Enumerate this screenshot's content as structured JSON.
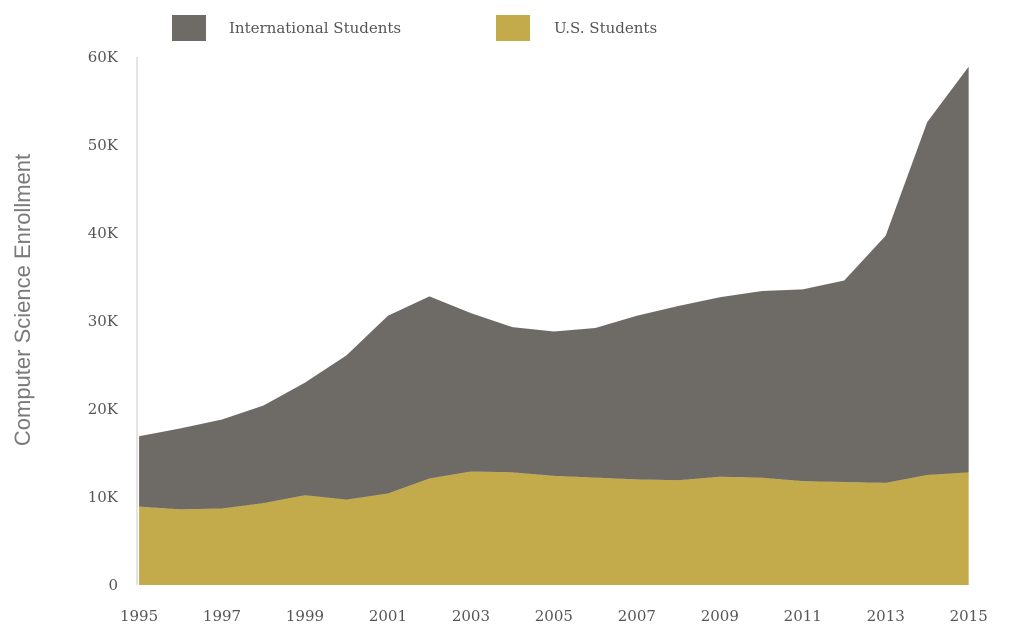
{
  "chart_data": {
    "type": "area",
    "stacked": true,
    "title": "",
    "xlabel": "",
    "ylabel": "Computer Science Enrollment",
    "x": [
      1995,
      1996,
      1997,
      1998,
      1999,
      2000,
      2001,
      2002,
      2003,
      2004,
      2005,
      2006,
      2007,
      2008,
      2009,
      2010,
      2011,
      2012,
      2013,
      2014,
      2015
    ],
    "xlim": [
      1994.95,
      2015.9
    ],
    "x_ticks": [
      1995,
      1997,
      1999,
      2001,
      2003,
      2005,
      2007,
      2009,
      2011,
      2013,
      2015
    ],
    "x_tick_labels": [
      "1995",
      "1997",
      "1999",
      "2001",
      "2003",
      "2005",
      "2007",
      "2009",
      "2011",
      "2013",
      "2015"
    ],
    "ylim": [
      0,
      60000
    ],
    "y_ticks": [
      0,
      10000,
      20000,
      30000,
      40000,
      50000,
      60000
    ],
    "y_tick_labels": [
      "0",
      "10K",
      "20K",
      "30K",
      "40K",
      "50K",
      "60K"
    ],
    "series": [
      {
        "name": "U.S. Students",
        "color": "#c3aa4a",
        "values": [
          8900,
          8600,
          8700,
          9300,
          10200,
          9700,
          10400,
          12100,
          12900,
          12800,
          12400,
          12200,
          12000,
          11900,
          12300,
          12200,
          11800,
          11700,
          11600,
          12500,
          12800
        ]
      },
      {
        "name": "International Students",
        "color": "#6e6a66",
        "values": [
          8000,
          9200,
          10100,
          11100,
          12800,
          16400,
          20200,
          20700,
          18000,
          16500,
          16400,
          17000,
          18600,
          19800,
          20400,
          21200,
          21800,
          22900,
          28100,
          40100,
          46100
        ]
      }
    ],
    "legend": {
      "position": "top",
      "entries": [
        "International Students",
        "U.S. Students"
      ]
    },
    "grid": false
  }
}
